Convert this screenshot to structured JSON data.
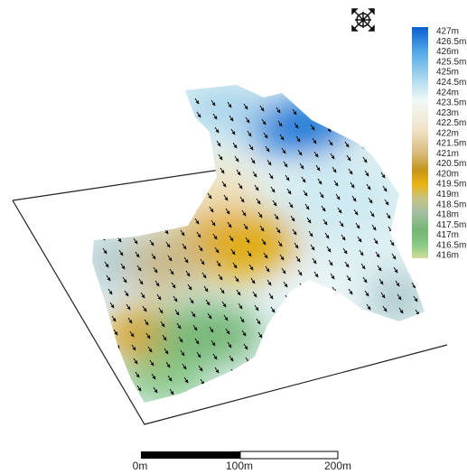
{
  "legend": {
    "labels": [
      "427m",
      "426.5m",
      "426m",
      "425.5m",
      "425m",
      "424.5m",
      "424m",
      "423.5m",
      "423m",
      "422.5m",
      "422m",
      "421.5m",
      "421m",
      "420.5m",
      "420m",
      "419.5m",
      "419m",
      "418.5m",
      "418m",
      "417.5m",
      "417m",
      "416.5m",
      "416m"
    ]
  },
  "scale_bar": {
    "labels": [
      "0m",
      "100m",
      "200m"
    ]
  }
}
